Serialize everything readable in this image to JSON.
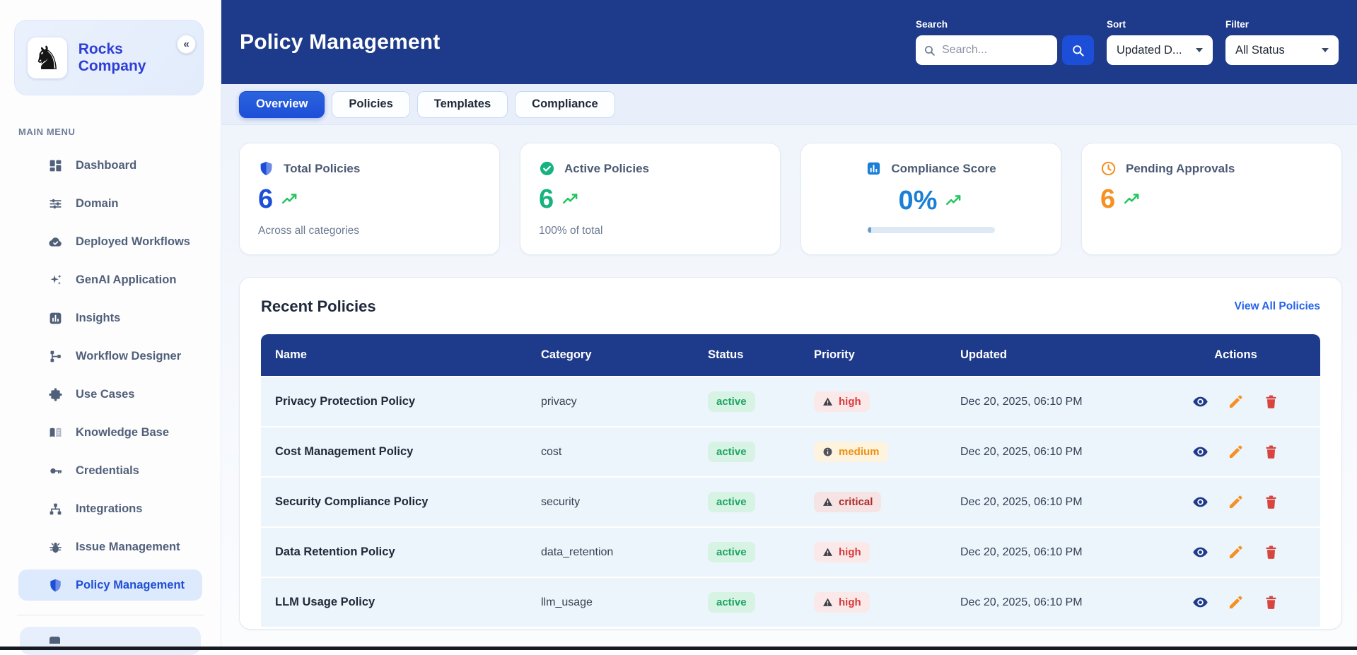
{
  "sidebar": {
    "company": "Rocks Company",
    "logo_glyph": "♞",
    "collapse_icon": "«",
    "section_label": "MAIN MENU",
    "items": [
      {
        "label": "Dashboard",
        "icon": "dashboard",
        "active": false
      },
      {
        "label": "Domain",
        "icon": "sliders",
        "active": false
      },
      {
        "label": "Deployed Workflows",
        "icon": "cloud-check",
        "active": false
      },
      {
        "label": "GenAI Application",
        "icon": "sparkles",
        "active": false
      },
      {
        "label": "Insights",
        "icon": "chart",
        "active": false
      },
      {
        "label": "Workflow Designer",
        "icon": "workflow",
        "active": false
      },
      {
        "label": "Use Cases",
        "icon": "puzzle",
        "active": false
      },
      {
        "label": "Knowledge Base",
        "icon": "book",
        "active": false
      },
      {
        "label": "Credentials",
        "icon": "key",
        "active": false
      },
      {
        "label": "Integrations",
        "icon": "nodes",
        "active": false
      },
      {
        "label": "Issue Management",
        "icon": "bug",
        "active": false
      },
      {
        "label": "Policy Management",
        "icon": "shield",
        "active": true
      }
    ]
  },
  "header": {
    "title": "Policy Management",
    "search_label": "Search",
    "search_placeholder": "Search...",
    "sort_label": "Sort",
    "sort_value": "Updated D...",
    "filter_label": "Filter",
    "filter_value": "All Status"
  },
  "tabs": [
    {
      "label": "Overview",
      "active": true
    },
    {
      "label": "Policies",
      "active": false
    },
    {
      "label": "Templates",
      "active": false
    },
    {
      "label": "Compliance",
      "active": false
    }
  ],
  "stats": [
    {
      "title": "Total Policies",
      "value": "6",
      "subtitle": "Across all categories",
      "icon": "shield",
      "accent": "#1d4ed8"
    },
    {
      "title": "Active Policies",
      "value": "6",
      "subtitle": "100% of total",
      "icon": "check-circle",
      "accent": "#16b380"
    },
    {
      "title": "Compliance Score",
      "value": "0%",
      "subtitle": "",
      "icon": "chart",
      "accent": "#1b7fd6",
      "trend": true,
      "progress": 3,
      "align": "center"
    },
    {
      "title": "Pending Approvals",
      "value": "6",
      "subtitle": "",
      "icon": "clock",
      "accent": "#f59122"
    }
  ],
  "recent": {
    "title": "Recent Policies",
    "view_all": "View All Policies",
    "columns": [
      "Name",
      "Category",
      "Status",
      "Priority",
      "Updated",
      "Actions"
    ],
    "rows": [
      {
        "name": "Privacy Protection Policy",
        "category": "privacy",
        "status": "active",
        "priority": "high",
        "updated": "Dec 20, 2025, 06:10 PM"
      },
      {
        "name": "Cost Management Policy",
        "category": "cost",
        "status": "active",
        "priority": "medium",
        "updated": "Dec 20, 2025, 06:10 PM"
      },
      {
        "name": "Security Compliance Policy",
        "category": "security",
        "status": "active",
        "priority": "critical",
        "updated": "Dec 20, 2025, 06:10 PM"
      },
      {
        "name": "Data Retention Policy",
        "category": "data_retention",
        "status": "active",
        "priority": "high",
        "updated": "Dec 20, 2025, 06:10 PM"
      },
      {
        "name": "LLM Usage Policy",
        "category": "llm_usage",
        "status": "active",
        "priority": "high",
        "updated": "Dec 20, 2025, 06:10 PM"
      }
    ]
  },
  "palette": {
    "header_bg": "#1e3a8a",
    "active_tab": "#1d4ed8",
    "table_header_bg": "#1e3a8a",
    "row_bg": "#ecf4fc",
    "link": "#2563eb",
    "status_active": {
      "bg": "#d6f3e4",
      "text": "#1fa564"
    },
    "priority": {
      "high": {
        "bg": "#fbe9ea",
        "text": "#d83a3a",
        "icon": "warning"
      },
      "medium": {
        "bg": "#fdf3df",
        "text": "#ec9213",
        "icon": "info"
      },
      "critical": {
        "bg": "#f6e3e3",
        "text": "#b02a2a",
        "icon": "warning"
      }
    },
    "actions": {
      "view": "#1e3a8a",
      "edit": "#f59122",
      "delete": "#d8453e"
    }
  }
}
